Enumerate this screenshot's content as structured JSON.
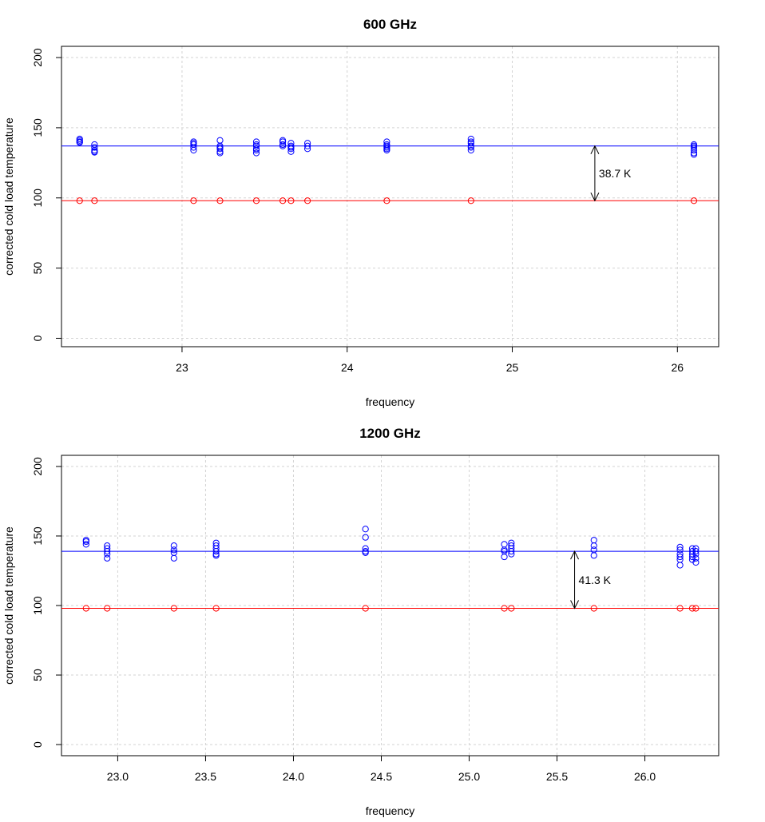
{
  "chart_data": [
    {
      "type": "scatter",
      "title": "600 GHz",
      "xlabel": "frequency",
      "ylabel": "corrected cold load temperature",
      "xlim": [
        22.27,
        26.25
      ],
      "ylim": [
        -6,
        208
      ],
      "xticks": [
        23,
        24,
        25,
        26
      ],
      "xtick_labels": [
        "23",
        "24",
        "25",
        "26"
      ],
      "yticks": [
        0,
        50,
        100,
        150,
        200
      ],
      "ytick_labels": [
        "0",
        "50",
        "100",
        "150",
        "200"
      ],
      "grid": true,
      "series": [
        {
          "color": "#0000ff",
          "x": [
            22.38,
            22.38,
            22.38,
            22.38,
            22.47,
            22.47,
            22.47,
            22.47,
            22.47,
            23.07,
            23.07,
            23.07,
            23.07,
            23.07,
            23.23,
            23.23,
            23.23,
            23.23,
            23.23,
            23.23,
            23.45,
            23.45,
            23.45,
            23.45,
            23.45,
            23.45,
            23.61,
            23.61,
            23.61,
            23.61,
            23.66,
            23.66,
            23.66,
            23.66,
            23.66,
            23.76,
            23.76,
            23.76,
            24.24,
            24.24,
            24.24,
            24.24,
            24.24,
            24.24,
            24.75,
            24.75,
            24.75,
            24.75,
            24.75,
            24.75,
            26.1,
            26.1,
            26.1,
            26.1,
            26.1,
            26.1
          ],
          "y": [
            142,
            141,
            140,
            139.5,
            138,
            136,
            134,
            133,
            132.5,
            140,
            139,
            138,
            136,
            134,
            141,
            137,
            136,
            135,
            133,
            132,
            140,
            138,
            137,
            135,
            134,
            132,
            141,
            140,
            138,
            137,
            139,
            137,
            136,
            135,
            133,
            139,
            137,
            135,
            140,
            138,
            137,
            136,
            135,
            134,
            142,
            140,
            139,
            137,
            136,
            134,
            138,
            137,
            136,
            134,
            132,
            131
          ]
        },
        {
          "color": "#ff0000",
          "x": [
            22.38,
            22.47,
            23.07,
            23.23,
            23.45,
            23.61,
            23.66,
            23.76,
            24.24,
            24.75,
            26.1
          ],
          "y": [
            98,
            98,
            98,
            98,
            98,
            98,
            98,
            98,
            98,
            98,
            98
          ]
        }
      ],
      "hlines": [
        {
          "y": 137,
          "color": "#0000ff"
        },
        {
          "y": 98,
          "color": "#ff0000"
        }
      ],
      "annotation": {
        "x": 25.5,
        "y_top": 137,
        "y_bottom": 98,
        "label": "38.7 K"
      }
    },
    {
      "type": "scatter",
      "title": "1200 GHz",
      "xlabel": "frequency",
      "ylabel": "corrected cold load temperature",
      "xlim": [
        22.68,
        26.42
      ],
      "ylim": [
        -8,
        208
      ],
      "xticks": [
        23.0,
        23.5,
        24.0,
        24.5,
        25.0,
        25.5,
        26.0
      ],
      "xtick_labels": [
        "23.0",
        "23.5",
        "24.0",
        "24.5",
        "25.0",
        "25.5",
        "26.0"
      ],
      "yticks": [
        0,
        50,
        100,
        150,
        200
      ],
      "ytick_labels": [
        "0",
        "50",
        "100",
        "150",
        "200"
      ],
      "grid": true,
      "series": [
        {
          "color": "#0000ff",
          "x": [
            22.82,
            22.82,
            22.82,
            22.94,
            22.94,
            22.94,
            22.94,
            22.94,
            23.32,
            23.32,
            23.32,
            23.32,
            23.56,
            23.56,
            23.56,
            23.56,
            23.56,
            23.56,
            24.41,
            24.41,
            24.41,
            24.41,
            24.41,
            25.2,
            25.2,
            25.2,
            25.2,
            25.24,
            25.24,
            25.24,
            25.24,
            25.24,
            25.71,
            25.71,
            25.71,
            25.71,
            26.2,
            26.2,
            26.2,
            26.2,
            26.2,
            26.2,
            26.27,
            26.27,
            26.27,
            26.27,
            26.27,
            26.29,
            26.29,
            26.29,
            26.29,
            26.29
          ],
          "y": [
            147,
            146,
            144,
            143,
            141,
            139,
            137,
            134,
            143,
            140,
            138,
            134,
            145,
            143,
            141,
            139,
            137,
            136,
            155,
            149,
            141,
            139,
            138,
            144,
            140,
            139,
            135,
            145,
            143,
            141,
            139,
            137,
            147,
            143,
            140,
            136,
            142,
            140,
            137,
            135,
            133,
            129,
            141,
            139,
            137,
            135,
            133,
            141,
            139,
            137,
            134,
            131
          ]
        },
        {
          "color": "#ff0000",
          "x": [
            22.82,
            22.94,
            23.32,
            23.56,
            24.41,
            25.2,
            25.24,
            25.71,
            26.2,
            26.27,
            26.29
          ],
          "y": [
            98,
            98,
            98,
            98,
            98,
            98,
            98,
            98,
            98,
            98,
            98
          ]
        }
      ],
      "hlines": [
        {
          "y": 139,
          "color": "#0000ff"
        },
        {
          "y": 98,
          "color": "#ff0000"
        }
      ],
      "annotation": {
        "x": 25.6,
        "y_top": 139,
        "y_bottom": 98,
        "label": "41.3 K"
      }
    }
  ]
}
